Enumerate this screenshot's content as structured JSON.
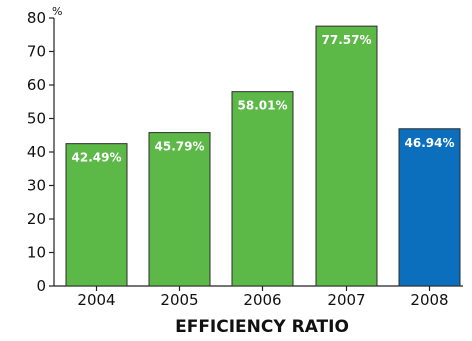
{
  "chart_data": {
    "type": "bar",
    "title": "EFFICIENCY RATIO",
    "unit": "%",
    "categories": [
      "2004",
      "2005",
      "2006",
      "2007",
      "2008"
    ],
    "values": [
      42.49,
      45.79,
      58.01,
      77.57,
      46.94
    ],
    "data_labels": [
      "42.49%",
      "45.79%",
      "58.01%",
      "77.57%",
      "46.94%"
    ],
    "ylim": [
      0,
      80
    ],
    "yticks": [
      0,
      10,
      20,
      30,
      40,
      50,
      60,
      70,
      80
    ],
    "colors": [
      "#5cb947",
      "#5cb947",
      "#5cb947",
      "#5cb947",
      "#0b6fbd"
    ],
    "grid": false,
    "legend": "none"
  }
}
